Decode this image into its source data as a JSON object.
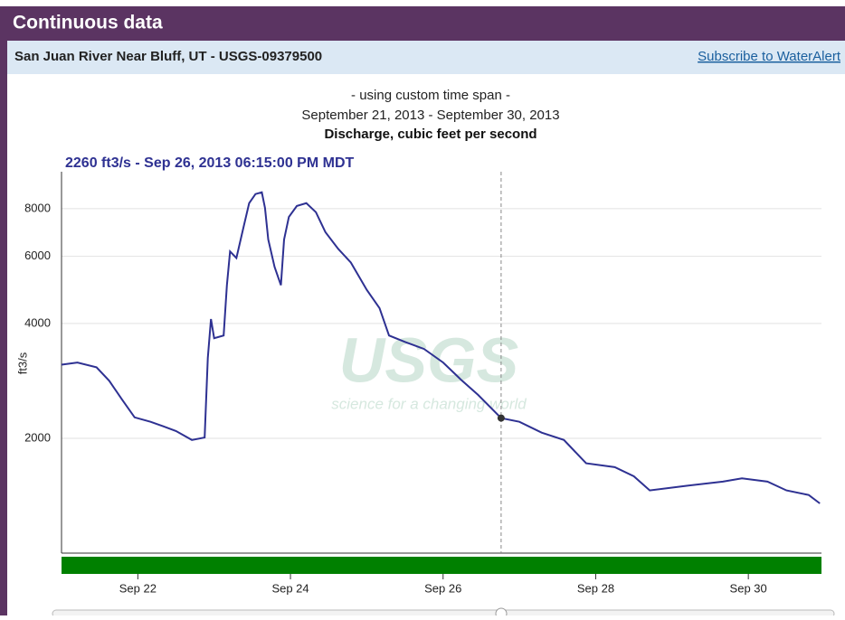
{
  "header": {
    "title": "Continuous data",
    "site": "San Juan River Near Bluff, UT - USGS-09379500",
    "link": "Subscribe to WaterAlert"
  },
  "watermark": {
    "logo": "USGS",
    "tagline": "science for a changing world"
  },
  "chart_data": {
    "type": "line",
    "subtitle": [
      "- using custom time span -",
      "September 21, 2013 - September 30, 2013"
    ],
    "title": "Discharge, cubic feet per second",
    "ylabel": "ft3/s",
    "annotation": "2260 ft3/s - Sep 26, 2013 06:15:00 PM MDT",
    "cursor_x": "2013-09-26T18:15",
    "log_y": true,
    "grid": true,
    "xlim": [
      "2013-09-21T00:00",
      "2013-09-30T23:00"
    ],
    "xticks": [
      {
        "value": "2013-09-22T00:00",
        "label": "Sep 22"
      },
      {
        "value": "2013-09-24T00:00",
        "label": "Sep 24"
      },
      {
        "value": "2013-09-26T00:00",
        "label": "Sep 26"
      },
      {
        "value": "2013-09-28T00:00",
        "label": "Sep 28"
      },
      {
        "value": "2013-09-30T00:00",
        "label": "Sep 30"
      }
    ],
    "ylim": [
      1000,
      10000
    ],
    "yticks": [
      2000,
      4000,
      6000,
      8000
    ],
    "x": [
      "2013-09-21T00:00",
      "2013-09-21T05:00",
      "2013-09-21T11:00",
      "2013-09-21T15:00",
      "2013-09-21T19:00",
      "2013-09-21T23:00",
      "2013-09-22T04:00",
      "2013-09-22T08:00",
      "2013-09-22T12:00",
      "2013-09-22T17:00",
      "2013-09-22T21:00",
      "2013-09-22T22:00",
      "2013-09-22T23:00",
      "2013-09-23T00:00",
      "2013-09-23T03:00",
      "2013-09-23T04:00",
      "2013-09-23T05:00",
      "2013-09-23T07:00",
      "2013-09-23T09:00",
      "2013-09-23T11:00",
      "2013-09-23T13:00",
      "2013-09-23T15:00",
      "2013-09-23T16:00",
      "2013-09-23T17:00",
      "2013-09-23T19:00",
      "2013-09-23T21:00",
      "2013-09-23T22:00",
      "2013-09-23T23:30",
      "2013-09-24T02:00",
      "2013-09-24T05:00",
      "2013-09-24T08:00",
      "2013-09-24T11:00",
      "2013-09-24T15:00",
      "2013-09-24T19:00",
      "2013-09-25T00:00",
      "2013-09-25T04:00",
      "2013-09-25T07:00",
      "2013-09-25T12:00",
      "2013-09-25T18:00",
      "2013-09-26T00:00",
      "2013-09-26T06:00",
      "2013-09-26T11:00",
      "2013-09-26T18:15",
      "2013-09-27T00:00",
      "2013-09-27T07:00",
      "2013-09-27T14:00",
      "2013-09-27T21:00",
      "2013-09-28T06:00",
      "2013-09-28T12:00",
      "2013-09-28T17:00",
      "2013-09-29T04:00",
      "2013-09-29T16:00",
      "2013-09-29T22:00",
      "2013-09-30T06:00",
      "2013-09-30T12:00",
      "2013-09-30T19:00",
      "2013-09-30T22:30"
    ],
    "series": [
      {
        "name": "Discharge",
        "color": "#2e3192",
        "values": [
          3120,
          3160,
          3070,
          2830,
          2530,
          2270,
          2210,
          2150,
          2090,
          1980,
          2010,
          3250,
          4110,
          3660,
          3720,
          5040,
          6180,
          5940,
          7010,
          8270,
          8740,
          8830,
          8040,
          6640,
          5630,
          5040,
          6640,
          7610,
          8130,
          8270,
          7830,
          6940,
          6280,
          5780,
          4900,
          4390,
          3720,
          3580,
          3430,
          3160,
          2830,
          2600,
          2260,
          2210,
          2070,
          1980,
          1720,
          1680,
          1590,
          1460,
          1500,
          1540,
          1570,
          1540,
          1460,
          1420,
          1350
        ]
      }
    ]
  }
}
